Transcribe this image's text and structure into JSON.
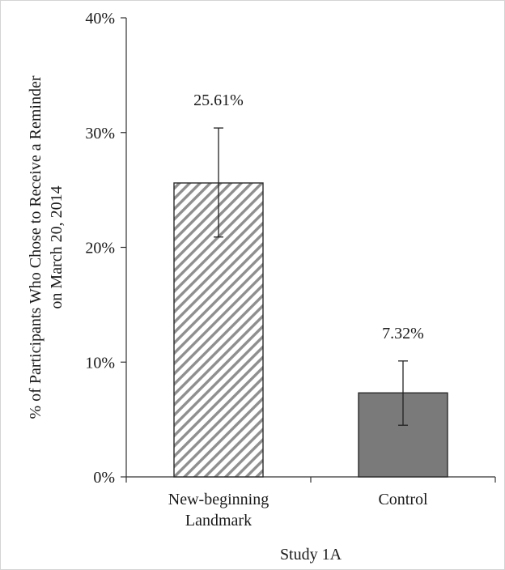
{
  "chart_data": {
    "type": "bar",
    "categories": [
      [
        "New-beginning",
        "Landmark"
      ],
      [
        "Control"
      ]
    ],
    "values": [
      25.61,
      7.32
    ],
    "value_labels": [
      "25.61%",
      "7.32%"
    ],
    "error_bars": [
      [
        20.9,
        30.4
      ],
      [
        4.5,
        10.1
      ]
    ],
    "bar_styles": [
      "hatched",
      "solid"
    ],
    "bar_color": "#7a7a7a",
    "hatch_color": "#8f8f8f",
    "ylim": [
      0,
      40
    ],
    "yticks": [
      0,
      10,
      20,
      30,
      40
    ],
    "ytick_labels": [
      "0%",
      "10%",
      "20%",
      "30%",
      "40%"
    ],
    "ylabel": [
      "% of Participants Who Chose to Receive a Reminder",
      "on March 20, 2014"
    ],
    "xlabel": "Study 1A",
    "title": "",
    "grid": false,
    "legend": "none"
  }
}
